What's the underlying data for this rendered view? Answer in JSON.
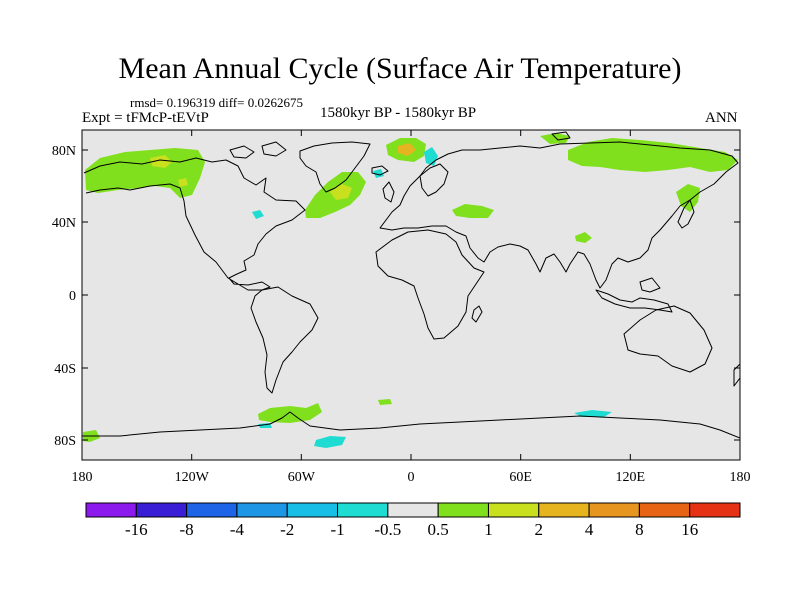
{
  "title": "Mean Annual Cycle (Surface Air Temperature)",
  "stats": "rmsd= 0.196319 diff= 0.0262675",
  "experiment": "Expt = tFMcP-tEVtP",
  "period": "1580kyr BP - 1580kyr BP",
  "season": "ANN",
  "map": {
    "background_color": "#e6e6e6",
    "lat_ticks": [
      "80N",
      "40N",
      "0",
      "40S",
      "80S"
    ],
    "lon_ticks": [
      "180",
      "120W",
      "60W",
      "0",
      "60E",
      "120E",
      "180"
    ]
  },
  "colorbar": {
    "colors": [
      "#8c1aec",
      "#3a1ed6",
      "#1e64e6",
      "#1e96e6",
      "#18bee6",
      "#1edcd2",
      "#e6e6e6",
      "#80e01e",
      "#c8e01e",
      "#e6b41e",
      "#e6961e",
      "#e66414",
      "#e63214"
    ],
    "labels": [
      "-16",
      "-8",
      "-4",
      "-2",
      "-1",
      "-0.5",
      "0.5",
      "1",
      "2",
      "4",
      "8",
      "16"
    ]
  }
}
